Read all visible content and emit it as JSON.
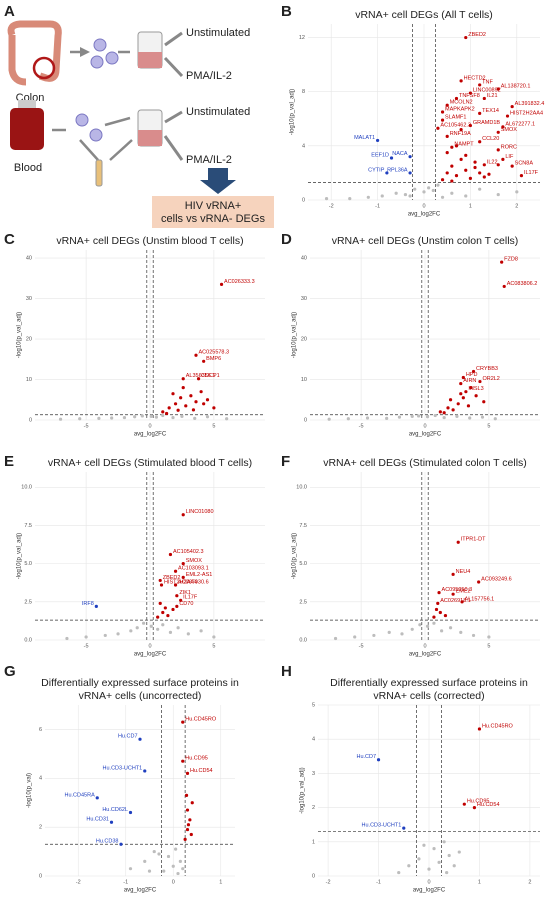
{
  "diagram": {
    "panel": "A",
    "sources": [
      "Colon",
      "Blood"
    ],
    "conditions": [
      "Unstimulated",
      "PMA/IL-2",
      "Unstimulated",
      "PMA/IL-2"
    ],
    "result": [
      "HIV vRNA+",
      "cells vs vRNA- DEGs"
    ]
  },
  "chart_data": [
    {
      "type": "scatter",
      "panel": "B",
      "title": [
        "vRNA+ cell DEGs (All T cells)"
      ],
      "xlabel": "avg_log2FC",
      "ylabel": "-log10(p_val_adj)",
      "xlim": [
        -2.5,
        2.5
      ],
      "xticks": [
        -2,
        -1,
        0,
        1,
        2
      ],
      "ylim": [
        0,
        13
      ],
      "yticks": [
        0,
        4,
        8,
        12
      ],
      "grid": true,
      "vlines": [
        -0.25,
        0.25
      ],
      "hline": 1.3,
      "series": [
        {
          "color": "#bdbdbd",
          "x": [
            -2.1,
            -1.6,
            -1.2,
            -0.9,
            -0.6,
            -0.4,
            -0.2,
            0,
            0.1,
            0.2,
            0.3,
            0.6,
            0.9,
            1.2,
            1.6,
            2.0,
            0.4,
            -0.3
          ],
          "values": [
            0.1,
            0.1,
            0.2,
            0.3,
            0.5,
            0.4,
            0.8,
            0.6,
            0.9,
            0.7,
            1.1,
            0.5,
            0.3,
            0.8,
            0.4,
            0.6,
            0.2,
            0.3
          ]
        },
        {
          "color": "#c00000",
          "x": [
            0.4,
            0.5,
            0.6,
            0.7,
            0.8,
            0.9,
            1.0,
            1.1,
            1.2,
            1.3,
            0.5,
            0.7,
            0.9,
            1.1,
            1.4,
            1.6,
            0.6,
            0.8
          ],
          "values": [
            1.5,
            2,
            2.5,
            1.8,
            3,
            2.2,
            1.6,
            2.8,
            2,
            1.7,
            3.5,
            4,
            3.3,
            2.4,
            1.9,
            2.6,
            1.4,
            5.2
          ]
        },
        {
          "color": "#c00000",
          "x": [
            0.9,
            0.8,
            1.2,
            1.6,
            1.0,
            0.7,
            1.3,
            0.5,
            1.9,
            0.4,
            1.2,
            1.8,
            0.4,
            1.0,
            1.7,
            0.3,
            1.6,
            0.5,
            1.2,
            0.6,
            1.6,
            1.7,
            1.3,
            1.9,
            2.1
          ],
          "values": [
            12.0,
            8.8,
            8.5,
            8.2,
            7.9,
            7.5,
            7.5,
            7.0,
            6.9,
            6.5,
            6.4,
            6.2,
            5.9,
            5.5,
            5.4,
            5.3,
            5.0,
            4.7,
            4.3,
            3.9,
            3.7,
            3.0,
            2.6,
            2.5,
            1.8
          ],
          "labels": [
            "ZBED2",
            "HECTD2",
            "TNF",
            "AL138720.1",
            "LINC00892",
            "TNFSF8",
            "IL21",
            "MCOLN2",
            "AL391832.4",
            "MAPKAPK2",
            "TEX14",
            "HIST2H2AA4",
            "SLAMF1",
            "GRAMD1B",
            "AL672277.1",
            "AC105462.3",
            "SMOX",
            "RNF19A",
            "CCL20",
            "NAMPT",
            "RORC",
            "LIF",
            "IL22",
            "SCN8A",
            "IL17F"
          ]
        },
        {
          "color": "#1f3fbf",
          "x": [
            -1.0,
            -0.7,
            -0.3,
            -0.8,
            -0.3
          ],
          "values": [
            4.4,
            3.1,
            3.2,
            2.0,
            2.0
          ],
          "labels": [
            "MALAT1",
            "EEF1D",
            "NACA",
            "CYTIP",
            "RPL36A"
          ]
        }
      ]
    },
    {
      "type": "scatter",
      "panel": "C",
      "title": [
        "vRNA+ cell DEGs (Unstim blood T cells)"
      ],
      "xlabel": "avg_log2FC",
      "ylabel": "-log10(p_val_adj)",
      "xlim": [
        -9,
        9
      ],
      "xticks": [
        -5,
        0,
        5
      ],
      "ylim": [
        0,
        42
      ],
      "yticks": [
        0,
        10,
        20,
        30,
        40
      ],
      "grid": true,
      "vlines": [
        -0.25,
        0.25
      ],
      "hline": 1.3,
      "series": [
        {
          "color": "#bdbdbd",
          "x": [
            -7,
            -5.5,
            -4,
            -3,
            -2,
            -1.2,
            -0.6,
            0.1,
            0.5,
            1,
            1.8,
            2.5,
            3.5,
            4.5,
            6
          ],
          "values": [
            0.2,
            0.3,
            0.4,
            0.5,
            0.6,
            0.8,
            1,
            0.9,
            0.7,
            1.1,
            0.6,
            0.9,
            0.4,
            0.8,
            0.3
          ]
        },
        {
          "color": "#c00000",
          "x": [
            1,
            1.5,
            2,
            2.4,
            2.8,
            3.2,
            3.6,
            4,
            4.5,
            5,
            1.8,
            2.6,
            3.4,
            4.2,
            1.3,
            2.2
          ],
          "values": [
            2,
            3,
            4,
            5.5,
            3.5,
            6,
            4.5,
            7,
            5,
            3,
            6.5,
            8,
            2.5,
            4,
            1.6,
            2.4
          ]
        },
        {
          "color": "#c00000",
          "x": [
            5.6,
            3.6,
            4.2,
            2.6,
            3.8
          ],
          "values": [
            33.5,
            16.0,
            14.5,
            10.2,
            10.2
          ],
          "labels": [
            "AC026333.3",
            "AC025578.3",
            "BMP6",
            "AL356356.1",
            "CDCP1"
          ]
        }
      ]
    },
    {
      "type": "scatter",
      "panel": "D",
      "title": [
        "vRNA+ cell DEGs (Unstim colon T cells)"
      ],
      "xlabel": "avg_log2FC",
      "ylabel": "-log10(p_val_adj)",
      "xlim": [
        -9,
        9
      ],
      "xticks": [
        -5,
        0,
        5
      ],
      "ylim": [
        0,
        42
      ],
      "yticks": [
        0,
        10,
        20,
        30,
        40
      ],
      "grid": true,
      "vlines": [
        -0.25,
        0.25
      ],
      "hline": 1.3,
      "series": [
        {
          "color": "#bdbdbd",
          "x": [
            -7.5,
            -6,
            -4.5,
            -3,
            -2,
            -1,
            -0.5,
            0.2,
            0.8,
            1.5,
            2.5,
            3.5,
            4.5,
            5.5
          ],
          "values": [
            0.2,
            0.3,
            0.5,
            0.4,
            0.7,
            0.9,
            1,
            0.8,
            1.1,
            0.6,
            0.9,
            0.5,
            0.7,
            0.3
          ]
        },
        {
          "color": "#c00000",
          "x": [
            1.2,
            1.8,
            2.2,
            2.6,
            3,
            3.4,
            4,
            4.6,
            2,
            2.8,
            3.6,
            1.5
          ],
          "values": [
            2,
            3,
            2.5,
            4,
            5.5,
            3.5,
            6,
            4.5,
            5,
            6.5,
            8,
            1.8
          ]
        },
        {
          "color": "#c00000",
          "x": [
            6.0,
            6.2,
            3.8,
            3.0,
            2.8,
            4.3,
            3.2
          ],
          "values": [
            39.0,
            33.0,
            12.0,
            10.5,
            9.0,
            9.5,
            7.0
          ],
          "labels": [
            "FZD8",
            "AC083806.2",
            "CRYBB3",
            "HPD",
            "AIRN",
            "OR2L2",
            "INSL3"
          ]
        }
      ]
    },
    {
      "type": "scatter",
      "panel": "E",
      "title": [
        "vRNA+ cell DEGs (Stimulated blood T cells)"
      ],
      "xlabel": "avg_log2FC",
      "ylabel": "-log10(p_val_adj)",
      "xlim": [
        -9,
        9
      ],
      "xticks": [
        -5,
        0,
        5
      ],
      "ylim": [
        0,
        11
      ],
      "yticks": [
        {
          "value": 0,
          "label": "0.0"
        },
        2.5,
        {
          "value": 5,
          "label": "5.0"
        },
        7.5,
        {
          "value": 10,
          "label": "10.0"
        }
      ],
      "grid": true,
      "vlines": [
        -0.25,
        0.25
      ],
      "hline": 1.3,
      "series": [
        {
          "color": "#bdbdbd",
          "x": [
            -6.5,
            -5,
            -3.5,
            -2.5,
            -1.5,
            -1,
            -0.5,
            0.1,
            0.6,
            1,
            1.6,
            2.2,
            3,
            4,
            5
          ],
          "values": [
            0.1,
            0.2,
            0.3,
            0.4,
            0.6,
            0.8,
            1.1,
            0.9,
            0.7,
            1.0,
            0.5,
            0.8,
            0.4,
            0.6,
            0.2
          ]
        },
        {
          "color": "#c00000",
          "x": [
            0.6,
            1,
            1.4,
            1.8,
            0.8,
            1.2
          ],
          "values": [
            1.5,
            1.8,
            1.6,
            2.0,
            2.4,
            2.1
          ]
        },
        {
          "color": "#c00000",
          "x": [
            2.6,
            1.6,
            2.6,
            2.0,
            2.6,
            0.8,
            0.9,
            2.0,
            2.1,
            2.4,
            2.1
          ],
          "values": [
            8.2,
            5.6,
            5.0,
            4.5,
            4.1,
            3.9,
            3.6,
            3.6,
            2.9,
            2.6,
            2.2
          ],
          "labels": [
            "LINC01080",
            "AC105402.3",
            "SMOX",
            "AC103093.1",
            "EML2-AS1",
            "ZBED2",
            "HIST2H2AA4",
            "AC067930.6",
            "ZIK1",
            "IL17F",
            "CD70"
          ]
        },
        {
          "color": "#1f3fbf",
          "x": [
            -4.2
          ],
          "values": [
            2.2
          ],
          "labels": [
            "IRF8"
          ]
        }
      ]
    },
    {
      "type": "scatter",
      "panel": "F",
      "title": [
        "vRNA+ cell DEGs (Stimulated colon T cells)"
      ],
      "xlabel": "avg_log2FC",
      "ylabel": "-log10(p_val_adj)",
      "xlim": [
        -9,
        9
      ],
      "xticks": [
        -5,
        0,
        5
      ],
      "ylim": [
        0,
        11
      ],
      "yticks": [
        {
          "value": 0,
          "label": "0.0"
        },
        2.5,
        {
          "value": 5,
          "label": "5.0"
        },
        7.5,
        {
          "value": 10,
          "label": "10.0"
        }
      ],
      "grid": true,
      "vlines": [
        -0.25,
        0.25
      ],
      "hline": 1.3,
      "series": [
        {
          "color": "#bdbdbd",
          "x": [
            -7,
            -5.5,
            -4,
            -2.8,
            -1.8,
            -1,
            -0.4,
            0.2,
            0.7,
            1.3,
            2,
            2.8,
            3.8,
            5
          ],
          "values": [
            0.1,
            0.2,
            0.3,
            0.5,
            0.4,
            0.7,
            1,
            0.9,
            1.1,
            0.6,
            0.8,
            0.5,
            0.3,
            0.2
          ]
        },
        {
          "color": "#c00000",
          "x": [
            0.7,
            1.2,
            1.6,
            0.9
          ],
          "values": [
            1.5,
            1.8,
            1.6,
            2.0
          ]
        },
        {
          "color": "#c00000",
          "x": [
            2.6,
            2.2,
            4.2,
            1.1,
            2.2,
            1.0,
            2.9
          ],
          "values": [
            6.4,
            4.3,
            3.8,
            3.1,
            3.0,
            2.4,
            2.5
          ],
          "labels": [
            "ITPR1-DT",
            "NEU4",
            "AC093249.6",
            "AC095050.3",
            "EME2",
            "AC026918.1",
            "AL157756.1"
          ]
        }
      ]
    },
    {
      "type": "scatter",
      "panel": "G",
      "title": [
        "Differentially expressed surface proteins in",
        "vRNA+ cells (uncorrected)"
      ],
      "xlabel": "avg_log2FC",
      "ylabel": "-log10(p_val)",
      "xlim": [
        -2.7,
        1.3
      ],
      "xticks": [
        -2,
        -1,
        0,
        1
      ],
      "ylim": [
        0,
        7
      ],
      "yticks": [
        0,
        2,
        4,
        6
      ],
      "grid": true,
      "vlines": [
        -0.25,
        0.25
      ],
      "hline": 1.3,
      "series": [
        {
          "color": "#bdbdbd",
          "x": [
            -0.9,
            -0.6,
            -0.4,
            -0.2,
            -0.1,
            0,
            0.05,
            0.1,
            0.15,
            -0.3,
            0.2,
            -0.5
          ],
          "values": [
            0.3,
            0.6,
            1.0,
            0.2,
            0.8,
            0.4,
            1.1,
            0.1,
            0.6,
            0.9,
            0.3,
            0.2
          ]
        },
        {
          "color": "#c00000",
          "x": [
            0.25,
            0.3,
            0.35,
            0.3,
            0.4,
            0.28,
            0.38,
            0.32
          ],
          "values": [
            1.5,
            1.9,
            2.3,
            2.7,
            3.0,
            3.3,
            1.7,
            2.1
          ]
        },
        {
          "color": "#c00000",
          "x": [
            0.2,
            0.2,
            0.3
          ],
          "values": [
            6.3,
            4.7,
            4.2
          ],
          "labels": [
            "Hu.CD45RO",
            "Hu.CD95",
            "Hu.CD54"
          ]
        },
        {
          "color": "#1f3fbf",
          "x": [
            -0.7,
            -0.6,
            -1.6,
            -0.9,
            -1.3,
            -1.1
          ],
          "values": [
            5.6,
            4.3,
            3.2,
            2.6,
            2.2,
            1.3
          ],
          "labels": [
            "Hu.CD7",
            "Hu.CD3-UCHT1",
            "Hu.CD45RA",
            "Hu.CD62L",
            "Hu.CD31",
            "Hu.CD38"
          ]
        }
      ]
    },
    {
      "type": "scatter",
      "panel": "H",
      "title": [
        "Differentially expressed surface proteins in",
        "vRNA+ cells (corrected)"
      ],
      "xlabel": "avg_log2FC",
      "ylabel": "-log10(p_val_adj)",
      "xlim": [
        -2.2,
        2.2
      ],
      "xticks": [
        -2,
        -1,
        0,
        1,
        2
      ],
      "ylim": [
        0,
        5
      ],
      "yticks": [
        0,
        1,
        2,
        3,
        4,
        5
      ],
      "grid": true,
      "vlines": [
        -0.25,
        0.25
      ],
      "hline": 1.3,
      "series": [
        {
          "color": "#bdbdbd",
          "x": [
            -0.6,
            -0.4,
            -0.2,
            0,
            0.1,
            0.2,
            0.3,
            0.4,
            0.5,
            0.6,
            -0.1,
            0.35
          ],
          "values": [
            0.1,
            0.3,
            0.5,
            0.2,
            0.8,
            0.4,
            1.0,
            0.6,
            0.3,
            0.7,
            0.9,
            0.1
          ]
        },
        {
          "color": "#c00000",
          "x": [
            1.0,
            0.7,
            0.9
          ],
          "values": [
            4.3,
            2.1,
            2.0
          ],
          "labels": [
            "Hu.CD45RO",
            "Hu.CD95",
            "Hu.CD54"
          ]
        },
        {
          "color": "#1f3fbf",
          "x": [
            -1.0,
            -0.5
          ],
          "values": [
            3.4,
            1.4
          ],
          "labels": [
            "Hu.CD7",
            "Hu.CD3-UCHT1"
          ]
        }
      ]
    }
  ]
}
